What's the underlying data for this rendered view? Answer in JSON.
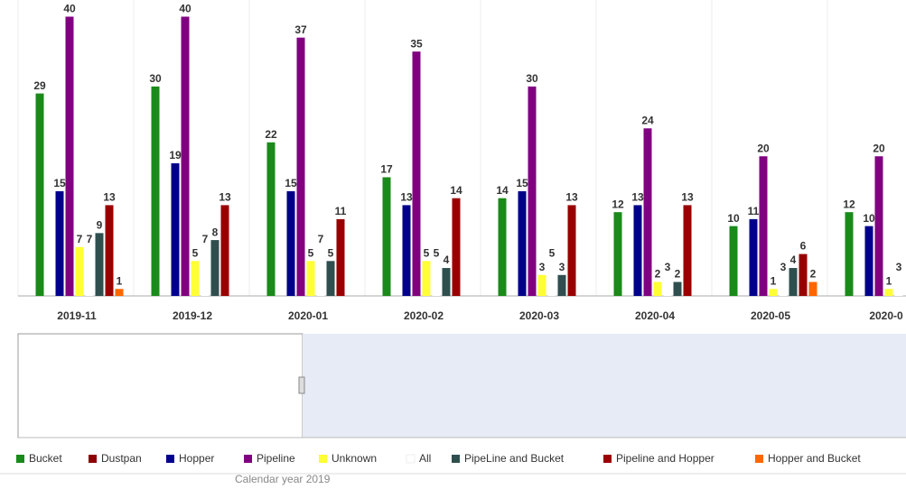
{
  "chart_data": {
    "type": "bar",
    "categories": [
      "2019-11",
      "2019-12",
      "2020-01",
      "2020-02",
      "2020-03",
      "2020-04",
      "2020-05",
      "2020-0"
    ],
    "ylim": [
      0,
      42
    ],
    "series": [
      {
        "name": "Bucket",
        "color": "#1a8a1a",
        "values": [
          29,
          30,
          22,
          17,
          14,
          12,
          10,
          12
        ]
      },
      {
        "name": "Dustpan",
        "color": "#8b0000",
        "values": [
          null,
          null,
          null,
          null,
          null,
          null,
          null,
          null
        ]
      },
      {
        "name": "Hopper",
        "color": "#00008b",
        "values": [
          15,
          19,
          15,
          13,
          15,
          13,
          11,
          10
        ]
      },
      {
        "name": "Pipeline",
        "color": "#800080",
        "values": [
          40,
          40,
          37,
          35,
          30,
          24,
          20,
          20
        ]
      },
      {
        "name": "Unknown",
        "color": "#ffff33",
        "values": [
          7,
          5,
          5,
          5,
          3,
          2,
          1,
          1
        ]
      },
      {
        "name": "All",
        "color": "#ffffff",
        "values": [
          7,
          7,
          7,
          5,
          5,
          3,
          3,
          3
        ]
      },
      {
        "name": "PipeLine and Bucket",
        "color": "#2f4f4f",
        "values": [
          9,
          8,
          5,
          4,
          3,
          2,
          4,
          null
        ]
      },
      {
        "name": "Pipeline and Hopper",
        "color": "#990000",
        "values": [
          13,
          13,
          11,
          14,
          13,
          13,
          6,
          null
        ]
      },
      {
        "name": "Hopper and Bucket",
        "color": "#ff6600",
        "values": [
          1,
          null,
          null,
          null,
          null,
          null,
          2,
          null
        ]
      }
    ],
    "footnote": "Calendar year 2019"
  }
}
